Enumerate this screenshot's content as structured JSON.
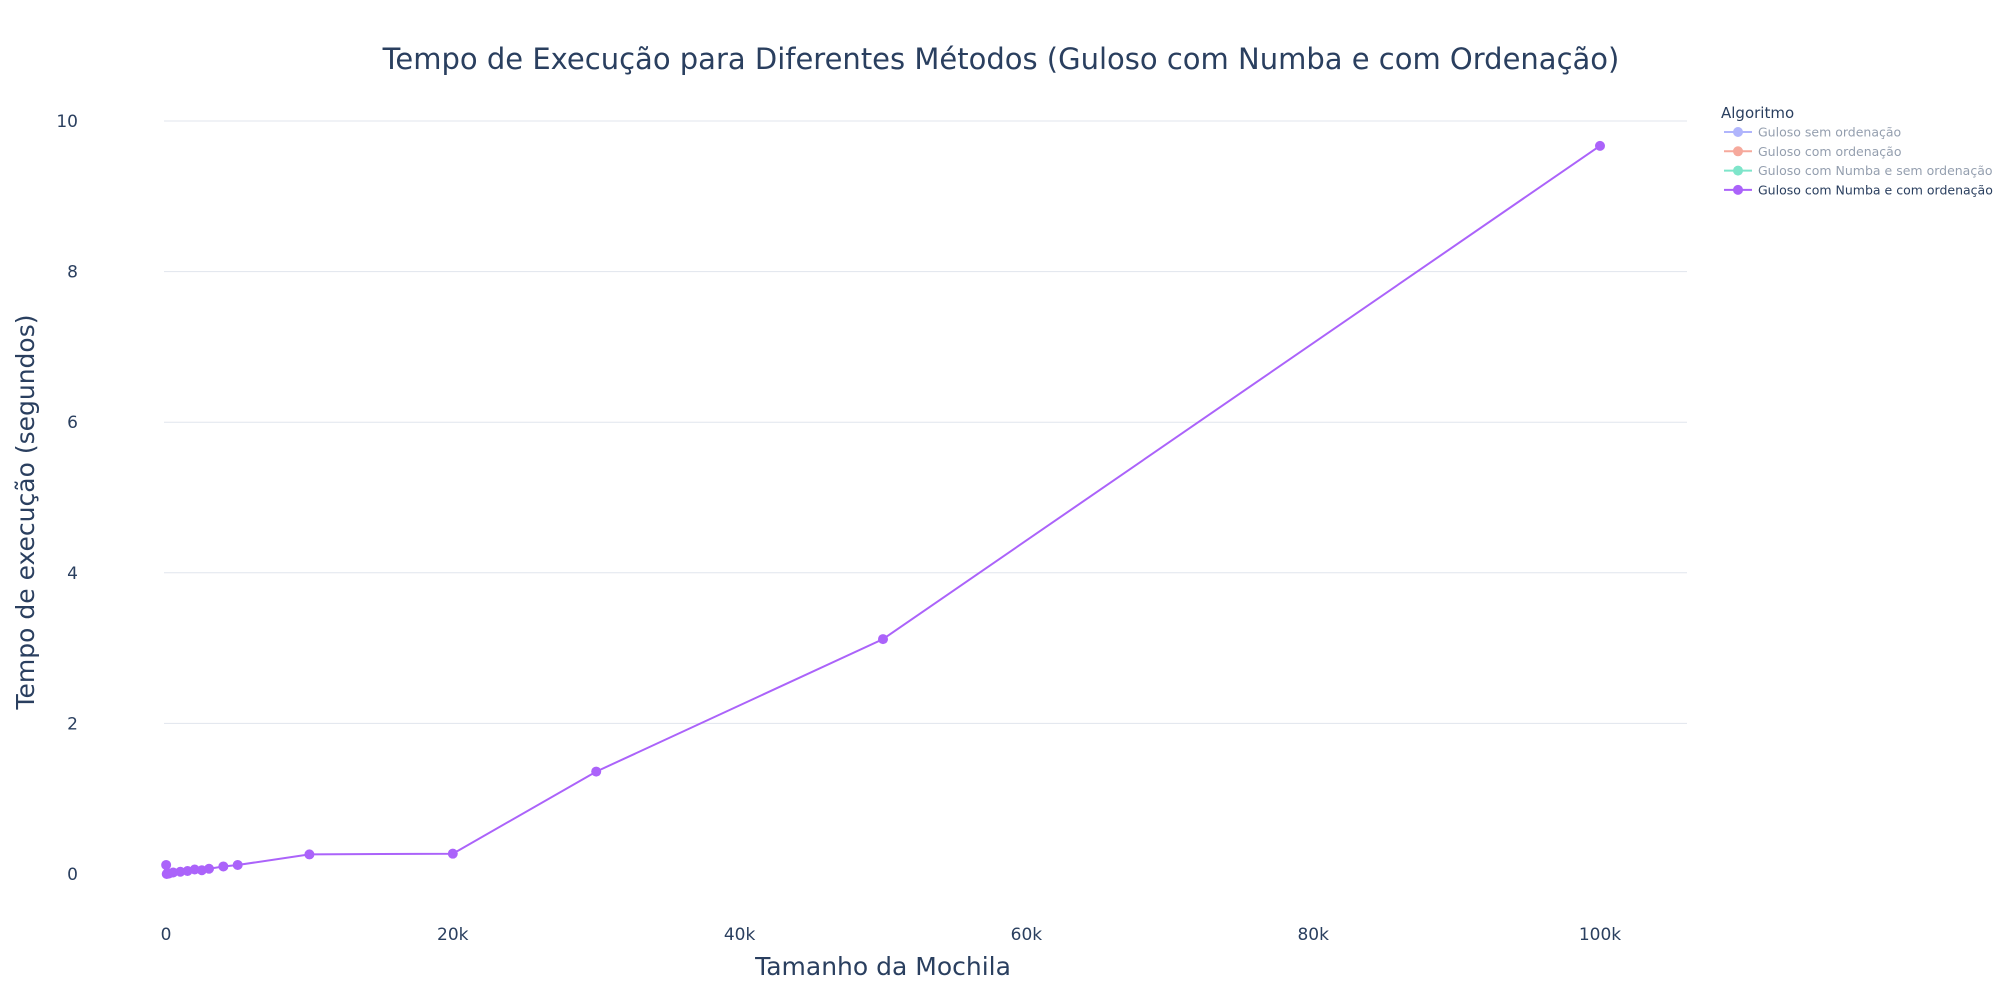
{
  "chart_data": {
    "type": "line",
    "title": "Tempo de Execução para Diferentes Métodos (Guloso com Numba e com Ordenação)",
    "xlabel": "Tamanho da Mochila",
    "ylabel": "Tempo de execução (segundos)",
    "xlim": [
      -5000,
      106000
    ],
    "ylim": [
      -0.4,
      10.3
    ],
    "x_ticks": [
      {
        "value": 0,
        "label": "0"
      },
      {
        "value": 20000,
        "label": "20k"
      },
      {
        "value": 40000,
        "label": "40k"
      },
      {
        "value": 60000,
        "label": "60k"
      },
      {
        "value": 80000,
        "label": "80k"
      },
      {
        "value": 100000,
        "label": "100k"
      }
    ],
    "y_ticks": [
      {
        "value": 0,
        "label": "0"
      },
      {
        "value": 2,
        "label": "2"
      },
      {
        "value": 4,
        "label": "4"
      },
      {
        "value": 6,
        "label": "6"
      },
      {
        "value": 8,
        "label": "8"
      },
      {
        "value": 10,
        "label": "10"
      }
    ],
    "grid": "y",
    "legend": {
      "title": "Algoritmo",
      "position": "top-right",
      "entries": [
        {
          "name": "Guloso sem ordenação",
          "color": "#636efa",
          "visible": false
        },
        {
          "name": "Guloso com ordenação",
          "color": "#ef553b",
          "visible": false
        },
        {
          "name": "Guloso com Numba e sem ordenação",
          "color": "#00cc96",
          "visible": false
        },
        {
          "name": "Guloso com Numba e com ordenação",
          "color": "#ab63fa",
          "visible": true
        }
      ]
    },
    "series": [
      {
        "name": "Guloso com Numba e com ordenação",
        "color": "#ab63fa",
        "x": [
          10,
          50,
          100,
          200,
          500,
          1000,
          1500,
          2000,
          2500,
          3000,
          4000,
          5000,
          10000,
          20000,
          30000,
          50000,
          100000
        ],
        "y": [
          0.12,
          0.0,
          0.01,
          0.005,
          0.02,
          0.03,
          0.04,
          0.06,
          0.05,
          0.07,
          0.1,
          0.12,
          0.26,
          0.27,
          1.36,
          3.12,
          9.67
        ]
      }
    ]
  }
}
